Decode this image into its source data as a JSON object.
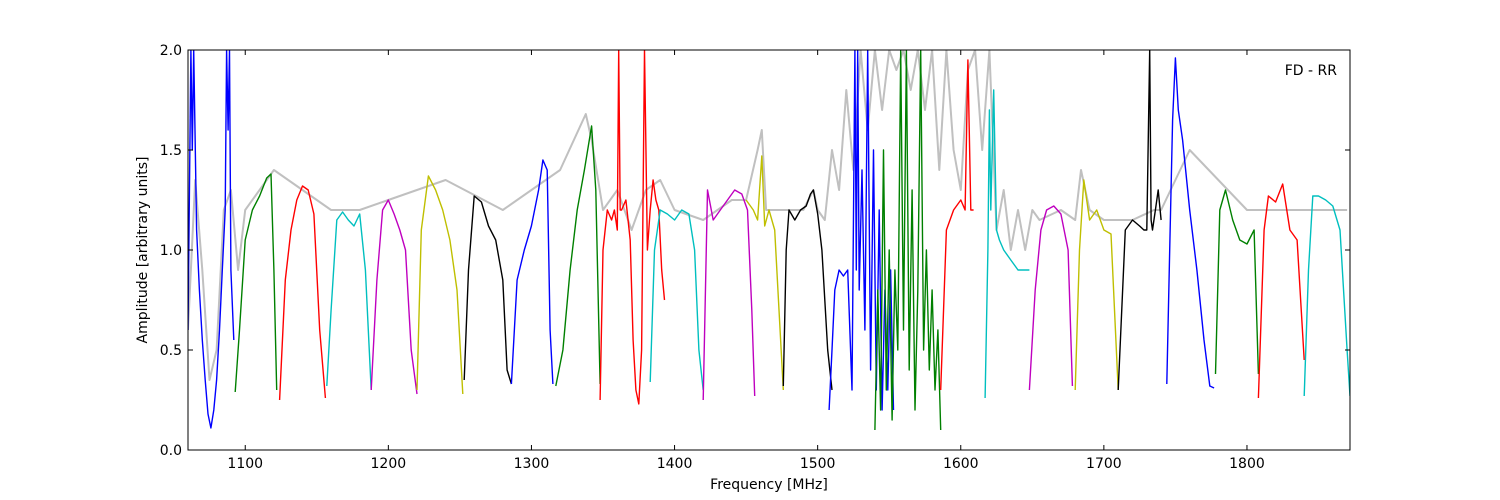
{
  "chart_data": {
    "type": "line",
    "title": "",
    "annotation": "FD - RR",
    "xlabel": "Frequency [MHz]",
    "ylabel": "Amplitude [arbitrary units]",
    "xlim": [
      1060,
      1872
    ],
    "ylim": [
      0,
      2
    ],
    "xticks": [
      1100,
      1200,
      1300,
      1400,
      1500,
      1600,
      1700,
      1800
    ],
    "yticks": [
      0.0,
      0.5,
      1.0,
      1.5,
      2.0
    ],
    "xtick_labels": [
      "1100",
      "1200",
      "1300",
      "1400",
      "1500",
      "1600",
      "1700",
      "1800"
    ],
    "ytick_labels": [
      "0.0",
      "0.5",
      "1.0",
      "1.5",
      "2.0"
    ],
    "grid": false,
    "legend": "none",
    "series": [
      {
        "color": "#c0c0c0",
        "x": [
          1060,
          1065,
          1070,
          1075,
          1080,
          1085,
          1090,
          1095,
          1100,
          1120,
          1140,
          1160,
          1180,
          1200,
          1240,
          1280,
          1320,
          1338,
          1342,
          1350,
          1360,
          1370,
          1380,
          1390,
          1400,
          1420,
          1440,
          1450,
          1458,
          1461,
          1464,
          1470,
          1480,
          1490,
          1497,
          1500,
          1505,
          1510,
          1515,
          1520,
          1525,
          1530,
          1535,
          1540,
          1545,
          1550,
          1555,
          1560,
          1565,
          1570,
          1575,
          1580,
          1585,
          1590,
          1595,
          1600,
          1605,
          1610,
          1615,
          1620,
          1625,
          1630,
          1635,
          1640,
          1645,
          1650,
          1655,
          1670,
          1680,
          1684,
          1690,
          1700,
          1720,
          1735,
          1740,
          1760,
          1800,
          1870
        ],
        "y": [
          0.6,
          1.35,
          0.9,
          0.35,
          0.5,
          1.2,
          1.3,
          0.9,
          1.2,
          1.4,
          1.3,
          1.2,
          1.2,
          1.25,
          1.35,
          1.2,
          1.4,
          1.68,
          1.55,
          1.2,
          1.3,
          1.1,
          1.3,
          1.35,
          1.2,
          1.15,
          1.25,
          1.25,
          1.5,
          1.6,
          1.2,
          1.2,
          1.2,
          1.2,
          1.3,
          1.2,
          1.15,
          1.5,
          1.3,
          1.8,
          1.4,
          2.0,
          1.6,
          2.0,
          1.7,
          2.0,
          1.9,
          2.0,
          1.8,
          2.0,
          1.7,
          2.0,
          1.4,
          2.0,
          1.5,
          1.3,
          1.9,
          2.0,
          1.5,
          2.0,
          1.1,
          1.3,
          1.0,
          1.2,
          1.0,
          1.2,
          1.15,
          1.2,
          1.15,
          1.4,
          1.2,
          1.15,
          1.15,
          1.2,
          1.2,
          1.5,
          1.2,
          1.2
        ]
      },
      {
        "color": "#0000ff",
        "x": [
          1060,
          1062,
          1063,
          1064,
          1066,
          1068,
          1070,
          1072,
          1074,
          1076,
          1078,
          1080,
          1082,
          1084,
          1086,
          1087,
          1088,
          1089,
          1090,
          1092
        ],
        "y": [
          0.6,
          2.0,
          1.5,
          2.0,
          1.1,
          0.8,
          0.55,
          0.35,
          0.18,
          0.11,
          0.2,
          0.35,
          0.6,
          0.9,
          1.2,
          2.0,
          1.6,
          2.0,
          0.9,
          0.55
        ]
      },
      {
        "color": "#008000",
        "x": [
          1093,
          1096,
          1100,
          1105,
          1110,
          1115,
          1118,
          1120,
          1122
        ],
        "y": [
          0.29,
          0.6,
          1.05,
          1.2,
          1.27,
          1.36,
          1.38,
          0.9,
          0.3
        ]
      },
      {
        "color": "#ff0000",
        "x": [
          1124,
          1128,
          1132,
          1136,
          1140,
          1144,
          1148,
          1152,
          1156
        ],
        "y": [
          0.25,
          0.85,
          1.1,
          1.25,
          1.32,
          1.3,
          1.18,
          0.6,
          0.26
        ]
      },
      {
        "color": "#00bfbf",
        "x": [
          1157,
          1160,
          1164,
          1168,
          1172,
          1176,
          1180,
          1184,
          1188
        ],
        "y": [
          0.32,
          0.7,
          1.15,
          1.19,
          1.15,
          1.12,
          1.18,
          0.9,
          0.3
        ]
      },
      {
        "color": "#bf00bf",
        "x": [
          1188,
          1192,
          1196,
          1200,
          1204,
          1208,
          1212,
          1216,
          1220
        ],
        "y": [
          0.3,
          0.85,
          1.2,
          1.25,
          1.18,
          1.1,
          1.0,
          0.5,
          0.28
        ]
      },
      {
        "color": "#bfbf00",
        "x": [
          1220,
          1223,
          1228,
          1233,
          1238,
          1243,
          1248,
          1252
        ],
        "y": [
          0.3,
          1.1,
          1.37,
          1.3,
          1.2,
          1.05,
          0.8,
          0.28
        ]
      },
      {
        "color": "#000000",
        "x": [
          1253,
          1256,
          1260,
          1265,
          1270,
          1275,
          1280,
          1283,
          1286
        ],
        "y": [
          0.35,
          0.9,
          1.27,
          1.24,
          1.12,
          1.05,
          0.85,
          0.4,
          0.33
        ]
      },
      {
        "color": "#0000ff",
        "x": [
          1286,
          1290,
          1295,
          1300,
          1305,
          1308,
          1311,
          1313,
          1315
        ],
        "y": [
          0.33,
          0.85,
          1.0,
          1.12,
          1.3,
          1.45,
          1.4,
          0.6,
          0.33
        ]
      },
      {
        "color": "#008000",
        "x": [
          1317,
          1322,
          1327,
          1332,
          1337,
          1342,
          1345,
          1348
        ],
        "y": [
          0.32,
          0.5,
          0.9,
          1.2,
          1.4,
          1.62,
          1.3,
          0.33
        ]
      },
      {
        "color": "#ff0000",
        "x": [
          1348,
          1350,
          1353,
          1356,
          1358,
          1360,
          1361,
          1362,
          1363,
          1366,
          1369,
          1371,
          1373,
          1375,
          1377,
          1379,
          1381,
          1383,
          1385,
          1387,
          1389,
          1391,
          1393
        ],
        "y": [
          0.25,
          1.0,
          1.2,
          1.15,
          1.2,
          1.1,
          2.0,
          1.2,
          1.2,
          1.25,
          1.05,
          0.55,
          0.3,
          0.23,
          0.5,
          2.0,
          1.0,
          1.2,
          1.35,
          1.25,
          1.2,
          0.9,
          0.75
        ]
      },
      {
        "color": "#00bfbf",
        "x": [
          1383,
          1386,
          1390,
          1395,
          1400,
          1405,
          1410,
          1414,
          1417,
          1420
        ],
        "y": [
          0.34,
          1.0,
          1.2,
          1.18,
          1.15,
          1.2,
          1.18,
          1.0,
          0.5,
          0.3
        ]
      },
      {
        "color": "#bf00bf",
        "x": [
          1420,
          1423,
          1427,
          1432,
          1437,
          1442,
          1447,
          1451,
          1454,
          1456
        ],
        "y": [
          0.25,
          1.3,
          1.15,
          1.2,
          1.25,
          1.3,
          1.28,
          1.2,
          0.7,
          0.27
        ]
      },
      {
        "color": "#bfbf00",
        "x": [
          1450,
          1455,
          1458,
          1461,
          1463,
          1466,
          1470,
          1473,
          1476
        ],
        "y": [
          1.25,
          1.2,
          1.15,
          1.47,
          1.12,
          1.2,
          1.1,
          0.7,
          0.3
        ]
      },
      {
        "color": "#000000",
        "x": [
          1476,
          1478,
          1480,
          1484,
          1488,
          1492,
          1495,
          1497,
          1500,
          1503,
          1507,
          1510
        ],
        "y": [
          0.32,
          1.0,
          1.2,
          1.15,
          1.2,
          1.22,
          1.28,
          1.3,
          1.18,
          1.0,
          0.5,
          0.3
        ]
      },
      {
        "color": "#0000ff",
        "x": [
          1508,
          1510,
          1512,
          1515,
          1518,
          1521,
          1524,
          1526,
          1527,
          1528,
          1529,
          1531,
          1533,
          1535,
          1537,
          1539,
          1541,
          1543,
          1545,
          1547,
          1549,
          1551,
          1553
        ],
        "y": [
          0.2,
          0.5,
          0.8,
          0.9,
          0.87,
          0.9,
          0.3,
          2.0,
          0.9,
          2.0,
          0.8,
          1.4,
          0.6,
          2.0,
          0.4,
          1.5,
          0.3,
          1.2,
          0.2,
          0.8,
          0.3,
          0.9,
          0.2
        ]
      },
      {
        "color": "#008000",
        "x": [
          1540,
          1542,
          1544,
          1546,
          1548,
          1550,
          1552,
          1554,
          1556,
          1558,
          1560,
          1562,
          1564,
          1566,
          1568,
          1570,
          1572,
          1574,
          1576,
          1578,
          1580,
          1582,
          1584,
          1586
        ],
        "y": [
          0.1,
          0.8,
          0.2,
          1.5,
          0.3,
          1.0,
          0.15,
          0.9,
          0.5,
          2.0,
          0.6,
          2.0,
          0.4,
          1.3,
          0.2,
          0.8,
          2.0,
          0.5,
          1.0,
          0.4,
          0.8,
          0.3,
          0.6,
          0.1
        ]
      },
      {
        "color": "#ff0000",
        "x": [
          1586,
          1590,
          1595,
          1600,
          1603,
          1605,
          1607,
          1609
        ],
        "y": [
          0.3,
          1.1,
          1.2,
          1.25,
          1.2,
          1.95,
          1.2,
          1.2
        ]
      },
      {
        "color": "#00bfbf",
        "x": [
          1617,
          1619,
          1620,
          1621,
          1623,
          1625,
          1627,
          1630,
          1635,
          1640,
          1645,
          1648
        ],
        "y": [
          0.26,
          1.0,
          1.7,
          1.2,
          1.8,
          1.1,
          1.05,
          1.0,
          0.95,
          0.9,
          0.9,
          0.9
        ]
      },
      {
        "color": "#bf00bf",
        "x": [
          1648,
          1652,
          1656,
          1660,
          1665,
          1670,
          1675,
          1678
        ],
        "y": [
          0.3,
          0.8,
          1.1,
          1.2,
          1.22,
          1.18,
          1.0,
          0.32
        ]
      },
      {
        "color": "#bfbf00",
        "x": [
          1680,
          1683,
          1686,
          1690,
          1695,
          1700,
          1705,
          1710
        ],
        "y": [
          0.3,
          1.0,
          1.35,
          1.15,
          1.2,
          1.1,
          1.08,
          0.3
        ]
      },
      {
        "color": "#000000",
        "x": [
          1710,
          1715,
          1720,
          1725,
          1728,
          1730,
          1732,
          1733,
          1734,
          1736,
          1738,
          1740
        ],
        "y": [
          0.3,
          1.1,
          1.15,
          1.12,
          1.1,
          1.1,
          2.0,
          1.15,
          1.1,
          1.2,
          1.3,
          1.15
        ]
      },
      {
        "color": "#0000ff",
        "x": [
          1744,
          1746,
          1748,
          1750,
          1752,
          1755,
          1760,
          1765,
          1770,
          1774,
          1777
        ],
        "y": [
          0.33,
          1.0,
          1.65,
          1.96,
          1.7,
          1.55,
          1.2,
          0.9,
          0.55,
          0.32,
          0.31
        ]
      },
      {
        "color": "#008000",
        "x": [
          1778,
          1781,
          1785,
          1790,
          1795,
          1800,
          1805,
          1808
        ],
        "y": [
          0.38,
          1.2,
          1.3,
          1.15,
          1.05,
          1.03,
          1.1,
          0.38
        ]
      },
      {
        "color": "#ff0000",
        "x": [
          1808,
          1812,
          1815,
          1820,
          1825,
          1830,
          1835,
          1840
        ],
        "y": [
          0.26,
          1.1,
          1.27,
          1.24,
          1.33,
          1.1,
          1.05,
          0.45
        ]
      },
      {
        "color": "#00bfbf",
        "x": [
          1840,
          1843,
          1846,
          1850,
          1855,
          1860,
          1865,
          1870,
          1872
        ],
        "y": [
          0.27,
          0.9,
          1.27,
          1.27,
          1.25,
          1.22,
          1.1,
          0.5,
          0.27
        ]
      }
    ]
  }
}
